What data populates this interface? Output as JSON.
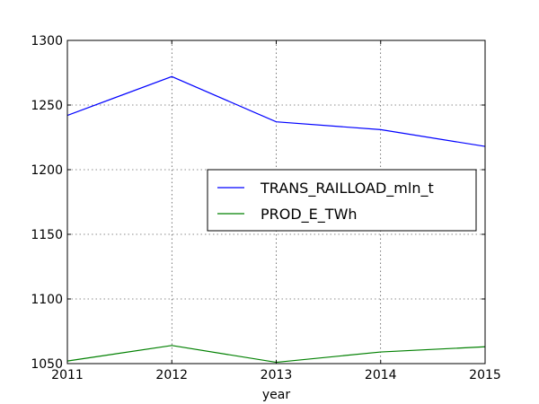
{
  "chart_data": {
    "type": "line",
    "x": [
      2011,
      2012,
      2013,
      2014,
      2015
    ],
    "series": [
      {
        "name": "TRANS_RAILLOAD_mln_t",
        "color": "#0000ff",
        "values": [
          1242,
          1272,
          1237,
          1231,
          1218
        ]
      },
      {
        "name": "PROD_E_TWh",
        "color": "#008000",
        "values": [
          1052,
          1064,
          1051,
          1059,
          1063
        ]
      }
    ],
    "xlabel": "year",
    "ylabel": "",
    "title": "",
    "xlim": [
      2011,
      2015
    ],
    "ylim": [
      1050,
      1300
    ],
    "xticks": [
      2011,
      2012,
      2013,
      2014,
      2015
    ],
    "yticks": [
      1050,
      1100,
      1150,
      1200,
      1250,
      1300
    ],
    "grid": true,
    "legend_position": "center-right"
  }
}
